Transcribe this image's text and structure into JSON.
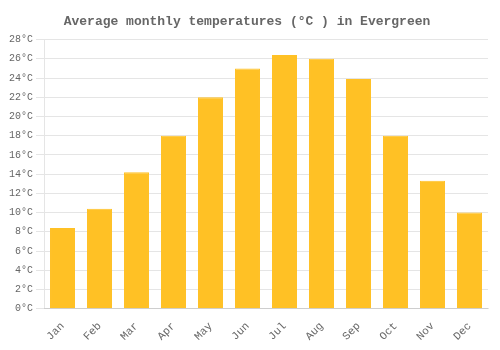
{
  "chart_data": {
    "type": "bar",
    "title": "Average monthly temperatures (°C ) in Evergreen",
    "categories": [
      "Jan",
      "Feb",
      "Mar",
      "Apr",
      "May",
      "Jun",
      "Jul",
      "Aug",
      "Sep",
      "Oct",
      "Nov",
      "Dec"
    ],
    "values": [
      8.4,
      10.4,
      14.2,
      18.0,
      22.0,
      25.0,
      26.4,
      26.0,
      23.9,
      18.0,
      13.3,
      10.0
    ],
    "color": "#FFC125",
    "ylim": [
      0,
      28
    ],
    "yticks": [
      {
        "value": 0,
        "label": "0°C"
      },
      {
        "value": 2,
        "label": "2°C"
      },
      {
        "value": 4,
        "label": "4°C"
      },
      {
        "value": 6,
        "label": "6°C"
      },
      {
        "value": 8,
        "label": "8°C"
      },
      {
        "value": 10,
        "label": "10°C"
      },
      {
        "value": 12,
        "label": "12°C"
      },
      {
        "value": 14,
        "label": "14°C"
      },
      {
        "value": 16,
        "label": "16°C"
      },
      {
        "value": 18,
        "label": "18°C"
      },
      {
        "value": 20,
        "label": "20°C"
      },
      {
        "value": 22,
        "label": "22°C"
      },
      {
        "value": 24,
        "label": "24°C"
      },
      {
        "value": 26,
        "label": "26°C"
      },
      {
        "value": 28,
        "label": "28°C"
      }
    ],
    "grid": true
  }
}
